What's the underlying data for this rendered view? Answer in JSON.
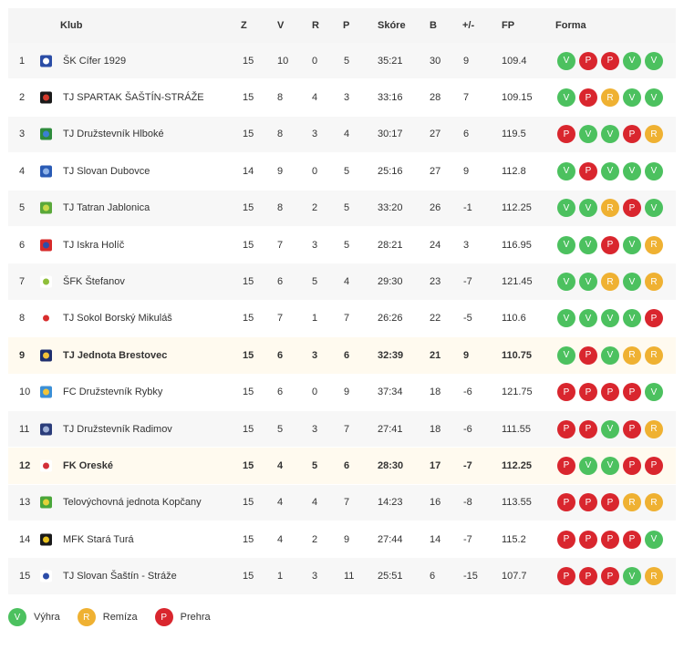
{
  "header": {
    "pos": "",
    "club": "Klub",
    "z": "Z",
    "v": "V",
    "r": "R",
    "p": "P",
    "score": "Skóre",
    "b": "B",
    "diff": "+/-",
    "fp": "FP",
    "form": "Forma"
  },
  "colors": {
    "V": "#4cc15f",
    "R": "#efb132",
    "P": "#d9262e"
  },
  "rows": [
    {
      "pos": "1",
      "club": "ŠK Cífer 1929",
      "z": "15",
      "v": "10",
      "r": "0",
      "p": "5",
      "score": "35:21",
      "b": "30",
      "diff": "9",
      "fp": "109.4",
      "form": [
        "V",
        "P",
        "P",
        "V",
        "V"
      ],
      "hl": false,
      "logo": [
        "#2b4da6",
        "#ffffff"
      ]
    },
    {
      "pos": "2",
      "club": "TJ SPARTAK ŠAŠTÍN-STRÁŽE",
      "z": "15",
      "v": "8",
      "r": "4",
      "p": "3",
      "score": "33:16",
      "b": "28",
      "diff": "7",
      "fp": "109.15",
      "form": [
        "V",
        "P",
        "R",
        "V",
        "V"
      ],
      "hl": false,
      "logo": [
        "#1a1a1a",
        "#d33a2c"
      ]
    },
    {
      "pos": "3",
      "club": "TJ Družstevník Hlboké",
      "z": "15",
      "v": "8",
      "r": "3",
      "p": "4",
      "score": "30:17",
      "b": "27",
      "diff": "6",
      "fp": "119.5",
      "form": [
        "P",
        "V",
        "V",
        "P",
        "R"
      ],
      "hl": false,
      "logo": [
        "#2e8b3c",
        "#3b7fd4"
      ]
    },
    {
      "pos": "4",
      "club": "TJ Slovan Dubovce",
      "z": "14",
      "v": "9",
      "r": "0",
      "p": "5",
      "score": "25:16",
      "b": "27",
      "diff": "9",
      "fp": "112.8",
      "form": [
        "V",
        "P",
        "V",
        "V",
        "V"
      ],
      "hl": false,
      "logo": [
        "#2a5bb5",
        "#8fb3e8"
      ]
    },
    {
      "pos": "5",
      "club": "TJ Tatran Jablonica",
      "z": "15",
      "v": "8",
      "r": "2",
      "p": "5",
      "score": "33:20",
      "b": "26",
      "diff": "-1",
      "fp": "112.25",
      "form": [
        "V",
        "V",
        "R",
        "P",
        "V"
      ],
      "hl": false,
      "logo": [
        "#5aa83a",
        "#c8d94a"
      ]
    },
    {
      "pos": "6",
      "club": "TJ Iskra Holíč",
      "z": "15",
      "v": "7",
      "r": "3",
      "p": "5",
      "score": "28:21",
      "b": "24",
      "diff": "3",
      "fp": "116.95",
      "form": [
        "V",
        "V",
        "P",
        "V",
        "R"
      ],
      "hl": false,
      "logo": [
        "#d62a2a",
        "#2d4ea8"
      ]
    },
    {
      "pos": "7",
      "club": "ŠFK Štefanov",
      "z": "15",
      "v": "6",
      "r": "5",
      "p": "4",
      "score": "29:30",
      "b": "23",
      "diff": "-7",
      "fp": "121.45",
      "form": [
        "V",
        "V",
        "R",
        "V",
        "R"
      ],
      "hl": false,
      "logo": [
        "#ffffff",
        "#8fbf3a"
      ]
    },
    {
      "pos": "8",
      "club": "TJ Sokol Borský Mikuláš",
      "z": "15",
      "v": "7",
      "r": "1",
      "p": "7",
      "score": "26:26",
      "b": "22",
      "diff": "-5",
      "fp": "110.6",
      "form": [
        "V",
        "V",
        "V",
        "V",
        "P"
      ],
      "hl": false,
      "logo": [
        "#ffffff",
        "#d82d2d"
      ]
    },
    {
      "pos": "9",
      "club": "TJ Jednota Brestovec",
      "z": "15",
      "v": "6",
      "r": "3",
      "p": "6",
      "score": "32:39",
      "b": "21",
      "diff": "9",
      "fp": "110.75",
      "form": [
        "V",
        "P",
        "V",
        "R",
        "R"
      ],
      "hl": true,
      "logo": [
        "#1f2f6e",
        "#f3c23a"
      ]
    },
    {
      "pos": "10",
      "club": "FC Družstevník Rybky",
      "z": "15",
      "v": "6",
      "r": "0",
      "p": "9",
      "score": "37:34",
      "b": "18",
      "diff": "-6",
      "fp": "121.75",
      "form": [
        "P",
        "P",
        "P",
        "P",
        "V"
      ],
      "hl": false,
      "logo": [
        "#3b8fd6",
        "#f2c43a"
      ]
    },
    {
      "pos": "11",
      "club": "TJ Družstevník Radimov",
      "z": "15",
      "v": "5",
      "r": "3",
      "p": "7",
      "score": "27:41",
      "b": "18",
      "diff": "-6",
      "fp": "111.55",
      "form": [
        "P",
        "P",
        "V",
        "P",
        "R"
      ],
      "hl": false,
      "logo": [
        "#2a3c7a",
        "#9fb0d6"
      ]
    },
    {
      "pos": "12",
      "club": "FK Oreské",
      "z": "15",
      "v": "4",
      "r": "5",
      "p": "6",
      "score": "28:30",
      "b": "17",
      "diff": "-7",
      "fp": "112.25",
      "form": [
        "P",
        "V",
        "V",
        "P",
        "P"
      ],
      "hl": true,
      "logo": [
        "#ffffff",
        "#d22f3a"
      ]
    },
    {
      "pos": "13",
      "club": "Telovýchovná jednota Kopčany",
      "z": "15",
      "v": "4",
      "r": "4",
      "p": "7",
      "score": "14:23",
      "b": "16",
      "diff": "-8",
      "fp": "113.55",
      "form": [
        "P",
        "P",
        "P",
        "R",
        "R"
      ],
      "hl": false,
      "logo": [
        "#4aa63a",
        "#e3d23a"
      ]
    },
    {
      "pos": "14",
      "club": "MFK Stará Turá",
      "z": "15",
      "v": "4",
      "r": "2",
      "p": "9",
      "score": "27:44",
      "b": "14",
      "diff": "-7",
      "fp": "115.2",
      "form": [
        "P",
        "P",
        "P",
        "P",
        "V"
      ],
      "hl": false,
      "logo": [
        "#1a1a1a",
        "#e8c21e"
      ]
    },
    {
      "pos": "15",
      "club": "TJ Slovan Šaštín - Stráže",
      "z": "15",
      "v": "1",
      "r": "3",
      "p": "11",
      "score": "25:51",
      "b": "6",
      "diff": "-15",
      "fp": "107.7",
      "form": [
        "P",
        "P",
        "P",
        "V",
        "R"
      ],
      "hl": false,
      "logo": [
        "#ffffff",
        "#2b4ca8"
      ]
    }
  ],
  "legend": [
    {
      "code": "V",
      "label": "Výhra"
    },
    {
      "code": "R",
      "label": "Remíza"
    },
    {
      "code": "P",
      "label": "Prehra"
    }
  ]
}
